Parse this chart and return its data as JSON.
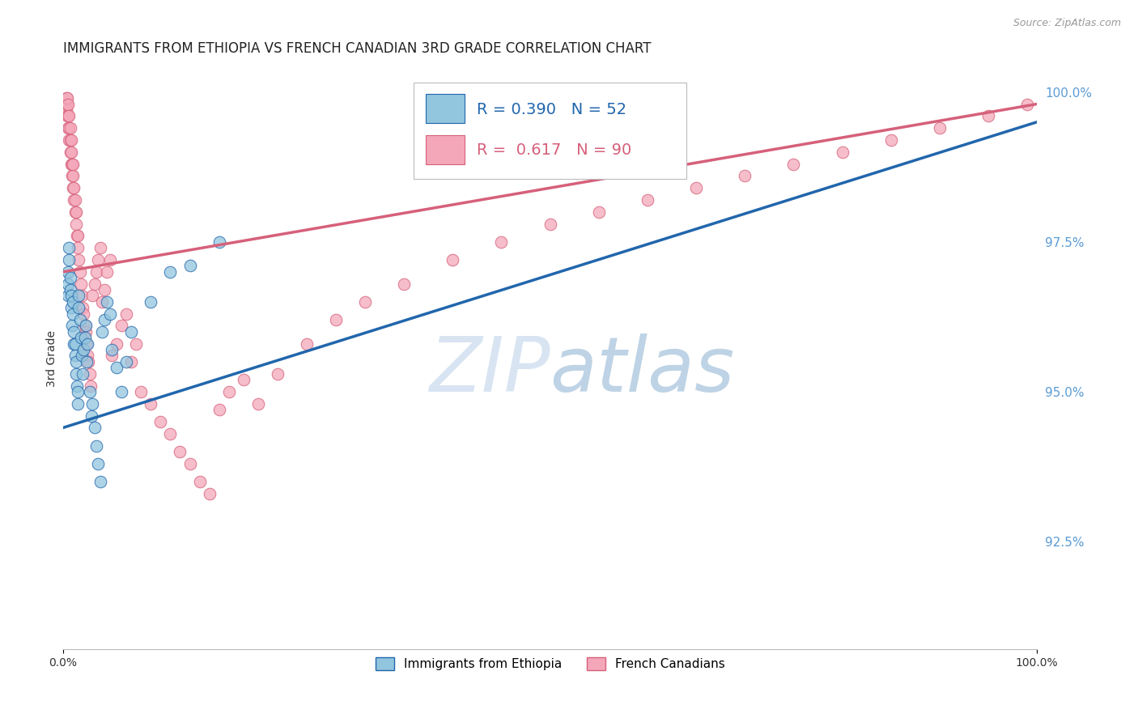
{
  "title": "IMMIGRANTS FROM ETHIOPIA VS FRENCH CANADIAN 3RD GRADE CORRELATION CHART",
  "source_text": "Source: ZipAtlas.com",
  "ylabel": "3rd Grade",
  "x_min": 0.0,
  "x_max": 1.0,
  "y_min": 0.907,
  "y_max": 1.004,
  "yticks": [
    0.925,
    0.95,
    0.975,
    1.0
  ],
  "ytick_labels": [
    "92.5%",
    "95.0%",
    "97.5%",
    "100.0%"
  ],
  "legend_blue_label": "Immigrants from Ethiopia",
  "legend_pink_label": "French Canadians",
  "blue_R": "0.390",
  "blue_N": "52",
  "pink_R": "0.617",
  "pink_N": "90",
  "blue_color": "#92c5de",
  "pink_color": "#f4a7b9",
  "blue_line_color": "#2166ac",
  "pink_line_color": "#d6607a",
  "watermark_color": "#c8d8ee",
  "background_color": "#ffffff",
  "grid_color": "#c8c8c8",
  "title_fontsize": 12,
  "axis_label_fontsize": 10,
  "tick_fontsize": 10,
  "right_tick_color": "#5b9bd5",
  "blue_scatter_x": [
    0.005,
    0.005,
    0.005,
    0.006,
    0.006,
    0.007,
    0.007,
    0.008,
    0.008,
    0.009,
    0.01,
    0.01,
    0.011,
    0.011,
    0.012,
    0.012,
    0.013,
    0.013,
    0.014,
    0.015,
    0.015,
    0.016,
    0.016,
    0.017,
    0.018,
    0.019,
    0.02,
    0.021,
    0.022,
    0.023,
    0.024,
    0.025,
    0.027,
    0.029,
    0.03,
    0.032,
    0.034,
    0.036,
    0.038,
    0.04,
    0.042,
    0.045,
    0.048,
    0.05,
    0.055,
    0.06,
    0.065,
    0.07,
    0.09,
    0.11,
    0.13,
    0.16
  ],
  "blue_scatter_y": [
    0.97,
    0.966,
    0.968,
    0.972,
    0.974,
    0.967,
    0.969,
    0.964,
    0.966,
    0.961,
    0.963,
    0.965,
    0.958,
    0.96,
    0.956,
    0.958,
    0.953,
    0.955,
    0.951,
    0.948,
    0.95,
    0.964,
    0.966,
    0.962,
    0.959,
    0.956,
    0.953,
    0.957,
    0.959,
    0.961,
    0.955,
    0.958,
    0.95,
    0.946,
    0.948,
    0.944,
    0.941,
    0.938,
    0.935,
    0.96,
    0.962,
    0.965,
    0.963,
    0.957,
    0.954,
    0.95,
    0.955,
    0.96,
    0.965,
    0.97,
    0.971,
    0.975
  ],
  "pink_scatter_x": [
    0.002,
    0.003,
    0.003,
    0.004,
    0.004,
    0.004,
    0.005,
    0.005,
    0.005,
    0.006,
    0.006,
    0.006,
    0.007,
    0.007,
    0.007,
    0.008,
    0.008,
    0.008,
    0.009,
    0.009,
    0.01,
    0.01,
    0.01,
    0.011,
    0.011,
    0.012,
    0.012,
    0.013,
    0.013,
    0.014,
    0.015,
    0.015,
    0.016,
    0.017,
    0.018,
    0.019,
    0.02,
    0.021,
    0.022,
    0.023,
    0.024,
    0.025,
    0.026,
    0.027,
    0.028,
    0.03,
    0.032,
    0.034,
    0.036,
    0.038,
    0.04,
    0.042,
    0.045,
    0.048,
    0.05,
    0.055,
    0.06,
    0.065,
    0.07,
    0.075,
    0.08,
    0.09,
    0.1,
    0.11,
    0.12,
    0.13,
    0.14,
    0.15,
    0.16,
    0.17,
    0.185,
    0.2,
    0.22,
    0.25,
    0.28,
    0.31,
    0.35,
    0.4,
    0.45,
    0.5,
    0.55,
    0.6,
    0.65,
    0.7,
    0.75,
    0.8,
    0.85,
    0.9,
    0.95,
    0.99
  ],
  "pink_scatter_y": [
    0.998,
    0.997,
    0.999,
    0.996,
    0.998,
    0.999,
    0.994,
    0.996,
    0.998,
    0.992,
    0.994,
    0.996,
    0.99,
    0.992,
    0.994,
    0.988,
    0.99,
    0.992,
    0.986,
    0.988,
    0.984,
    0.986,
    0.988,
    0.982,
    0.984,
    0.98,
    0.982,
    0.978,
    0.98,
    0.976,
    0.974,
    0.976,
    0.972,
    0.97,
    0.968,
    0.966,
    0.964,
    0.963,
    0.961,
    0.96,
    0.958,
    0.956,
    0.955,
    0.953,
    0.951,
    0.966,
    0.968,
    0.97,
    0.972,
    0.974,
    0.965,
    0.967,
    0.97,
    0.972,
    0.956,
    0.958,
    0.961,
    0.963,
    0.955,
    0.958,
    0.95,
    0.948,
    0.945,
    0.943,
    0.94,
    0.938,
    0.935,
    0.933,
    0.947,
    0.95,
    0.952,
    0.948,
    0.953,
    0.958,
    0.962,
    0.965,
    0.968,
    0.972,
    0.975,
    0.978,
    0.98,
    0.982,
    0.984,
    0.986,
    0.988,
    0.99,
    0.992,
    0.994,
    0.996,
    0.998
  ],
  "blue_trendline_x": [
    0.0,
    1.0
  ],
  "blue_trendline_y": [
    0.944,
    0.995
  ],
  "pink_trendline_x": [
    0.0,
    1.0
  ],
  "pink_trendline_y": [
    0.97,
    0.998
  ]
}
